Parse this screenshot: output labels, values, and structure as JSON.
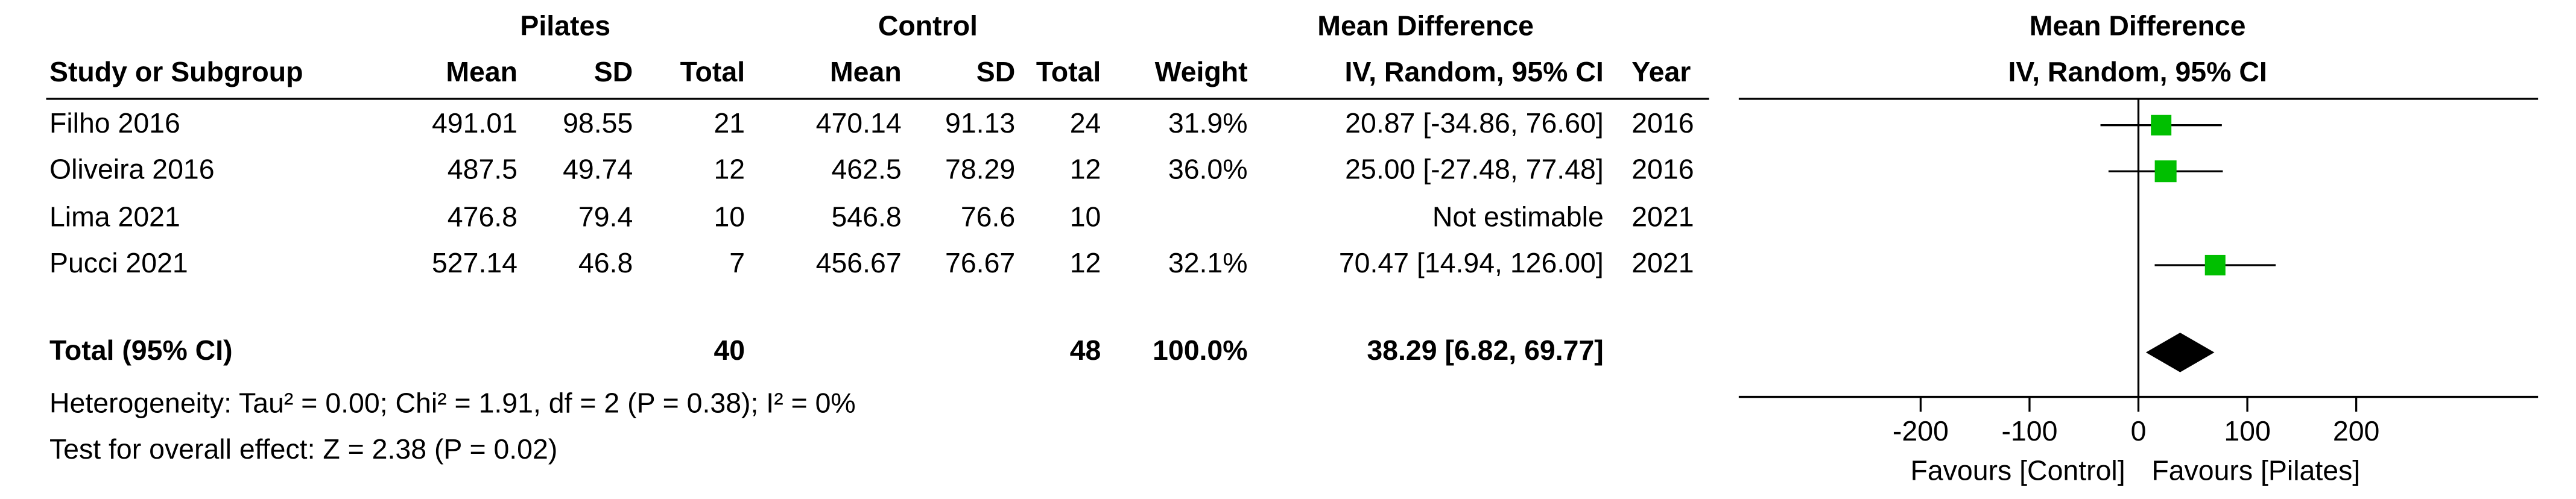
{
  "chart_data": {
    "type": "forest",
    "group_headers": [
      "Pilates",
      "Control",
      "Mean Difference",
      "Mean Difference"
    ],
    "columns": [
      "Study or Subgroup",
      "Mean",
      "SD",
      "Total",
      "Mean",
      "SD",
      "Total",
      "Weight",
      "IV, Random, 95% CI",
      "Year",
      "IV, Random, 95% CI"
    ],
    "studies": [
      {
        "name": "Filho 2016",
        "pilates": [
          491.01,
          98.55,
          21
        ],
        "control": [
          470.14,
          91.13,
          24
        ],
        "weight": {
          "value": 31.9,
          "label": "31.9%"
        },
        "ci_label": "20.87 [-34.86, 76.60]",
        "md": 20.87,
        "lo": -34.86,
        "hi": 76.6,
        "year": "2016"
      },
      {
        "name": "Oliveira 2016",
        "pilates": [
          487.5,
          49.74,
          12
        ],
        "control": [
          462.5,
          78.29,
          12
        ],
        "weight": {
          "value": 36.0,
          "label": "36.0%"
        },
        "ci_label": "25.00 [-27.48, 77.48]",
        "md": 25.0,
        "lo": -27.48,
        "hi": 77.48,
        "year": "2016"
      },
      {
        "name": "Lima 2021",
        "pilates": [
          476.8,
          79.4,
          10
        ],
        "control": [
          546.8,
          76.6,
          10
        ],
        "weight": null,
        "ci_label": "Not estimable",
        "md": null,
        "lo": null,
        "hi": null,
        "year": "2021"
      },
      {
        "name": "Pucci 2021",
        "pilates": [
          527.14,
          46.8,
          7
        ],
        "control": [
          456.67,
          76.67,
          12
        ],
        "weight": {
          "value": 32.1,
          "label": "32.1%"
        },
        "ci_label": "70.47 [14.94, 126.00]",
        "md": 70.47,
        "lo": 14.94,
        "hi": 126.0,
        "year": "2021"
      }
    ],
    "total": {
      "name": "Total (95% CI)",
      "pilates_total": 40,
      "control_total": 48,
      "weight": {
        "value": 100,
        "label": "100.0%"
      },
      "ci_label": "38.29 [6.82, 69.77]",
      "md": 38.29,
      "lo": 6.82,
      "hi": 69.77
    },
    "heterogeneity": "Heterogeneity: Tau² = 0.00; Chi² = 1.91, df = 2 (P = 0.38); I² = 0%",
    "overall_effect": "Test for overall effect: Z = 2.38 (P = 0.02)",
    "xlim": [
      -367,
      367
    ],
    "xticks": [
      -200,
      -100,
      0,
      100,
      200
    ],
    "favours_left": "Favours [Control]",
    "favours_right": "Favours [Pilates]",
    "square_color": "#00bf00",
    "diamond_color": "#000000"
  }
}
